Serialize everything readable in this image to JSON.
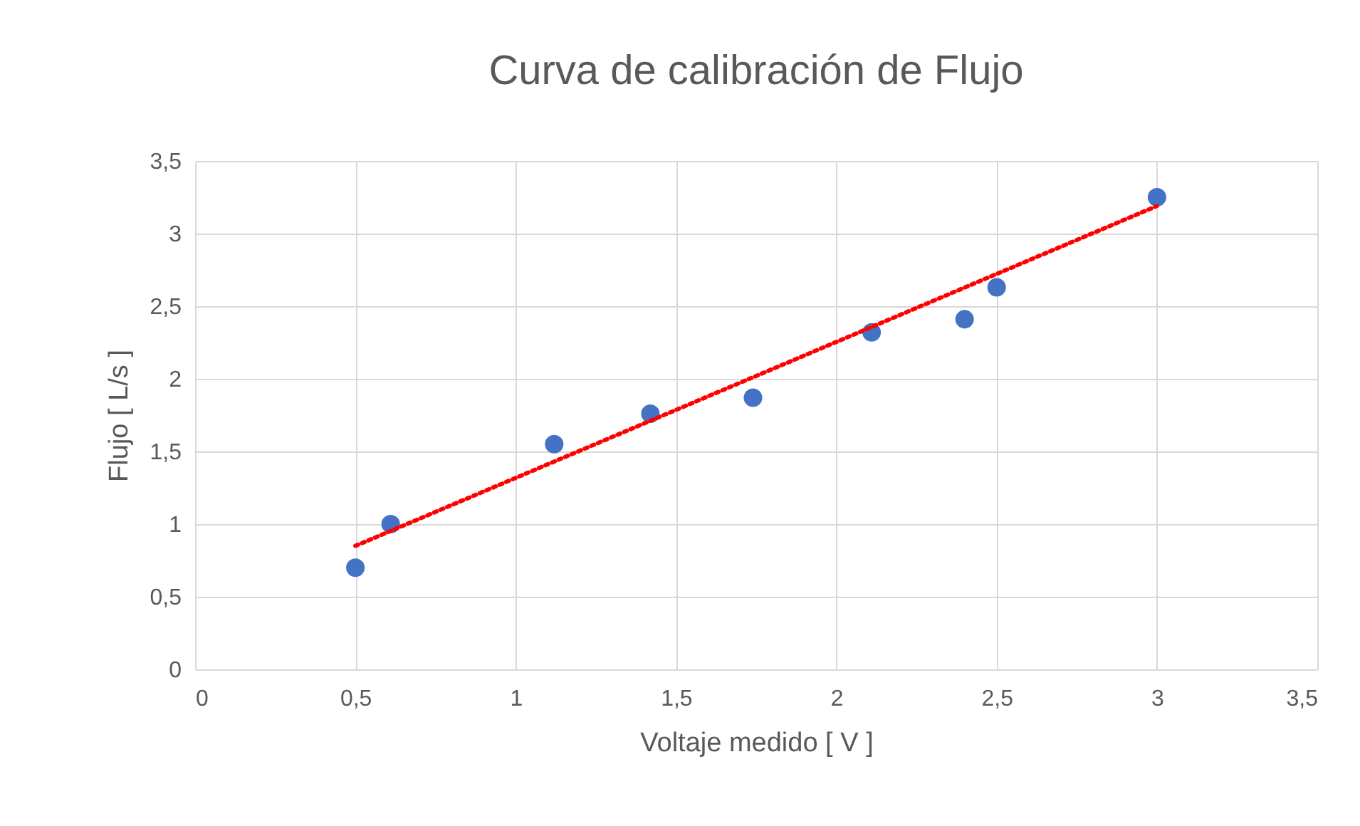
{
  "chart_data": {
    "type": "scatter",
    "title": "Curva de calibración de Flujo",
    "xlabel": "Voltaje medido [ V ]",
    "ylabel": "Flujo [ L/s ]",
    "xlim": [
      0,
      3.5
    ],
    "ylim": [
      0,
      3.5
    ],
    "xticks": [
      0,
      {
        "value": 0.5,
        "label": "0,5"
      },
      1,
      {
        "value": 1.5,
        "label": "1,5"
      },
      2,
      {
        "value": 2.5,
        "label": "2,5"
      },
      3,
      {
        "value": 3.5,
        "label": "3,5"
      }
    ],
    "yticks": [
      0,
      {
        "value": 0.5,
        "label": "0,5"
      },
      1,
      {
        "value": 1.5,
        "label": "1,5"
      },
      2,
      {
        "value": 2.5,
        "label": "2,5"
      },
      3,
      {
        "value": 3.5,
        "label": "3,5"
      }
    ],
    "grid": true,
    "series": [
      {
        "type": "scatter",
        "marker": "circle",
        "color": "#4472c4",
        "x": [
          0.5,
          0.61,
          1.12,
          1.42,
          1.74,
          2.11,
          2.4,
          2.5,
          3.0
        ],
        "values": [
          0.7,
          1.0,
          1.55,
          1.76,
          1.87,
          2.32,
          2.41,
          2.63,
          3.25
        ]
      },
      {
        "type": "line",
        "color": "#ff0000",
        "line_style": "dotted",
        "x": [
          0.5,
          3.0
        ],
        "values": [
          0.85,
          3.19
        ]
      }
    ]
  }
}
